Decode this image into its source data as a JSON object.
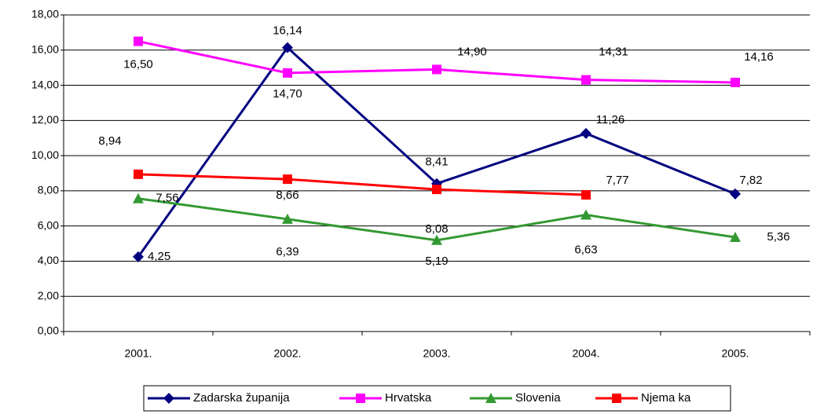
{
  "chart_data": {
    "type": "line",
    "categories": [
      "2001.",
      "2002.",
      "2003.",
      "2004.",
      "2005."
    ],
    "ylim": [
      0,
      18
    ],
    "yticks": [
      {
        "value": 0,
        "label": "0,00"
      },
      {
        "value": 2,
        "label": "2,00"
      },
      {
        "value": 4,
        "label": "4,00"
      },
      {
        "value": 6,
        "label": "6,00"
      },
      {
        "value": 8,
        "label": "8,00"
      },
      {
        "value": 10,
        "label": "10,00"
      },
      {
        "value": 12,
        "label": "12,00"
      },
      {
        "value": 14,
        "label": "14,00"
      },
      {
        "value": 16,
        "label": "16,00"
      },
      {
        "value": 18,
        "label": "18,00"
      }
    ],
    "grid": true,
    "legend": "bottom",
    "series": [
      {
        "name": "Zadarska županija",
        "color": "#000080",
        "marker": "diamond",
        "values": [
          4.25,
          16.14,
          8.41,
          11.26,
          7.82
        ],
        "value_labels": [
          "4,25",
          "16,14",
          "8,41",
          "11,26",
          "7,82"
        ]
      },
      {
        "name": "Hrvatska",
        "color": "#ff00ff",
        "marker": "square",
        "values": [
          16.5,
          14.7,
          14.9,
          14.31,
          14.16
        ],
        "value_labels": [
          "16,50",
          "14,70",
          "14,90",
          "14,31",
          "14,16"
        ]
      },
      {
        "name": "Slovenia",
        "color": "#339933",
        "marker": "triangle",
        "values": [
          7.56,
          6.39,
          5.19,
          6.63,
          5.36
        ],
        "value_labels": [
          "7,56",
          "6,39",
          "5,19",
          "6,63",
          "5,36"
        ]
      },
      {
        "name": "Njema ka",
        "color": "#ff0000",
        "marker": "square",
        "values": [
          8.94,
          8.66,
          8.08,
          7.77,
          null
        ],
        "value_labels": [
          "8,94",
          "8,66",
          "8,08",
          "7,77",
          null
        ]
      }
    ]
  }
}
